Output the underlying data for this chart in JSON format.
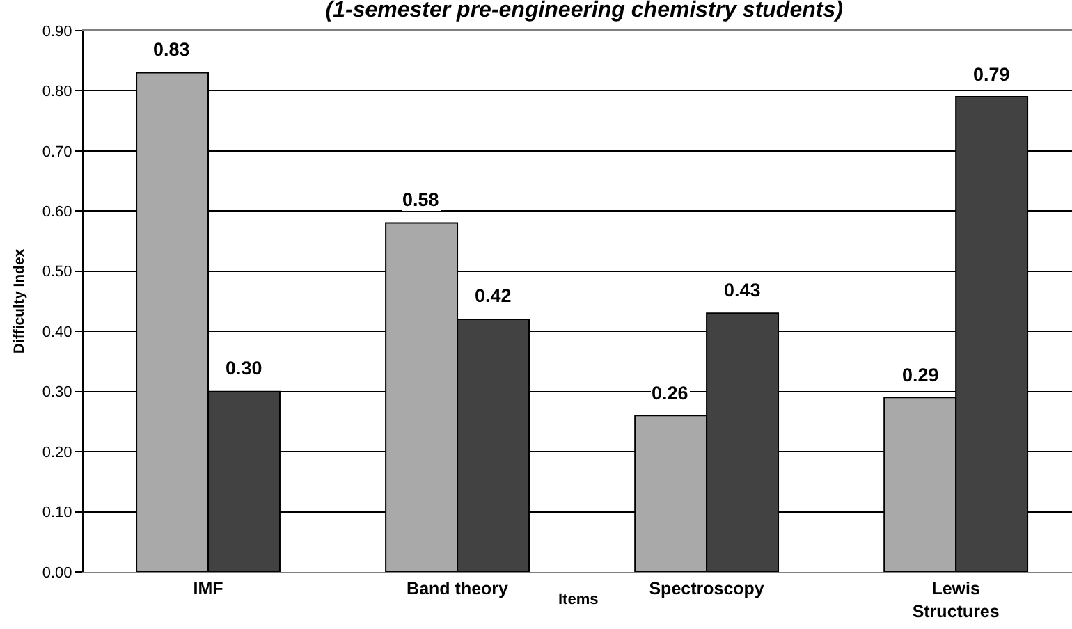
{
  "chart_data": {
    "type": "bar",
    "title": "(1-semester pre-engineering chemistry students)",
    "xlabel": "Items",
    "ylabel": "Difficulty Index",
    "categories": [
      "IMF",
      "Band theory",
      "Spectroscopy",
      "Lewis Structures"
    ],
    "series": [
      {
        "color": "#a9a9a9",
        "values": [
          0.83,
          0.58,
          0.26,
          0.29
        ],
        "value_labels": [
          "0.83",
          "0.58",
          "0.26",
          "0.29"
        ]
      },
      {
        "color": "#424242",
        "values": [
          0.3,
          0.42,
          0.43,
          0.79
        ],
        "value_labels": [
          "0.30",
          "0.42",
          "0.43",
          "0.79"
        ]
      }
    ],
    "ylim": [
      0,
      0.9
    ],
    "yticks": [
      {
        "value": 0,
        "label": "0.00"
      },
      {
        "value": 0.1,
        "label": "0.10"
      },
      {
        "value": 0.2,
        "label": "0.20"
      },
      {
        "value": 0.3,
        "label": "0.30"
      },
      {
        "value": 0.4,
        "label": "0.40"
      },
      {
        "value": 0.5,
        "label": "0.50"
      },
      {
        "value": 0.6,
        "label": "0.60"
      },
      {
        "value": 0.7,
        "label": "0.70"
      },
      {
        "value": 0.8,
        "label": "0.80"
      },
      {
        "value": 0.9,
        "label": "0.90"
      }
    ],
    "grid": "y",
    "legend": false
  }
}
